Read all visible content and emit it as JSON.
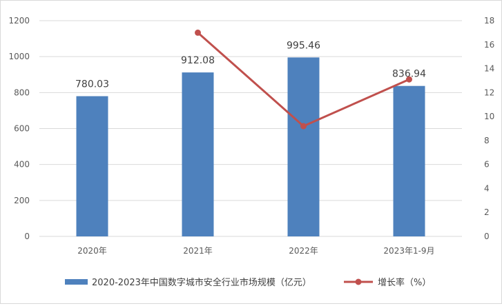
{
  "chart_data": {
    "type": "bar",
    "categories": [
      "2020年",
      "2021年",
      "2022年",
      "2023年1-9月"
    ],
    "series": [
      {
        "name": "2020-2023年中国数字城市安全行业市场规模（亿元）",
        "type": "bar",
        "axis": "left",
        "values": [
          780.03,
          912.08,
          995.46,
          836.94
        ],
        "labels": [
          "780.03",
          "912.08",
          "995.46",
          "836.94"
        ],
        "color": "#4e81bd"
      },
      {
        "name": "增长率（%）",
        "type": "line",
        "axis": "right",
        "values": [
          null,
          17.0,
          9.2,
          13.1
        ],
        "color": "#c0504d"
      }
    ],
    "y_left": {
      "min": 0,
      "max": 1200,
      "ticks": [
        "0",
        "200",
        "400",
        "600",
        "800",
        "1000",
        "1200"
      ]
    },
    "y_right": {
      "min": 0,
      "max": 18,
      "ticks": [
        "0",
        "2",
        "4",
        "6",
        "8",
        "10",
        "12",
        "14",
        "16",
        "18"
      ]
    },
    "grid": "horizontal",
    "legend_position": "bottom"
  }
}
